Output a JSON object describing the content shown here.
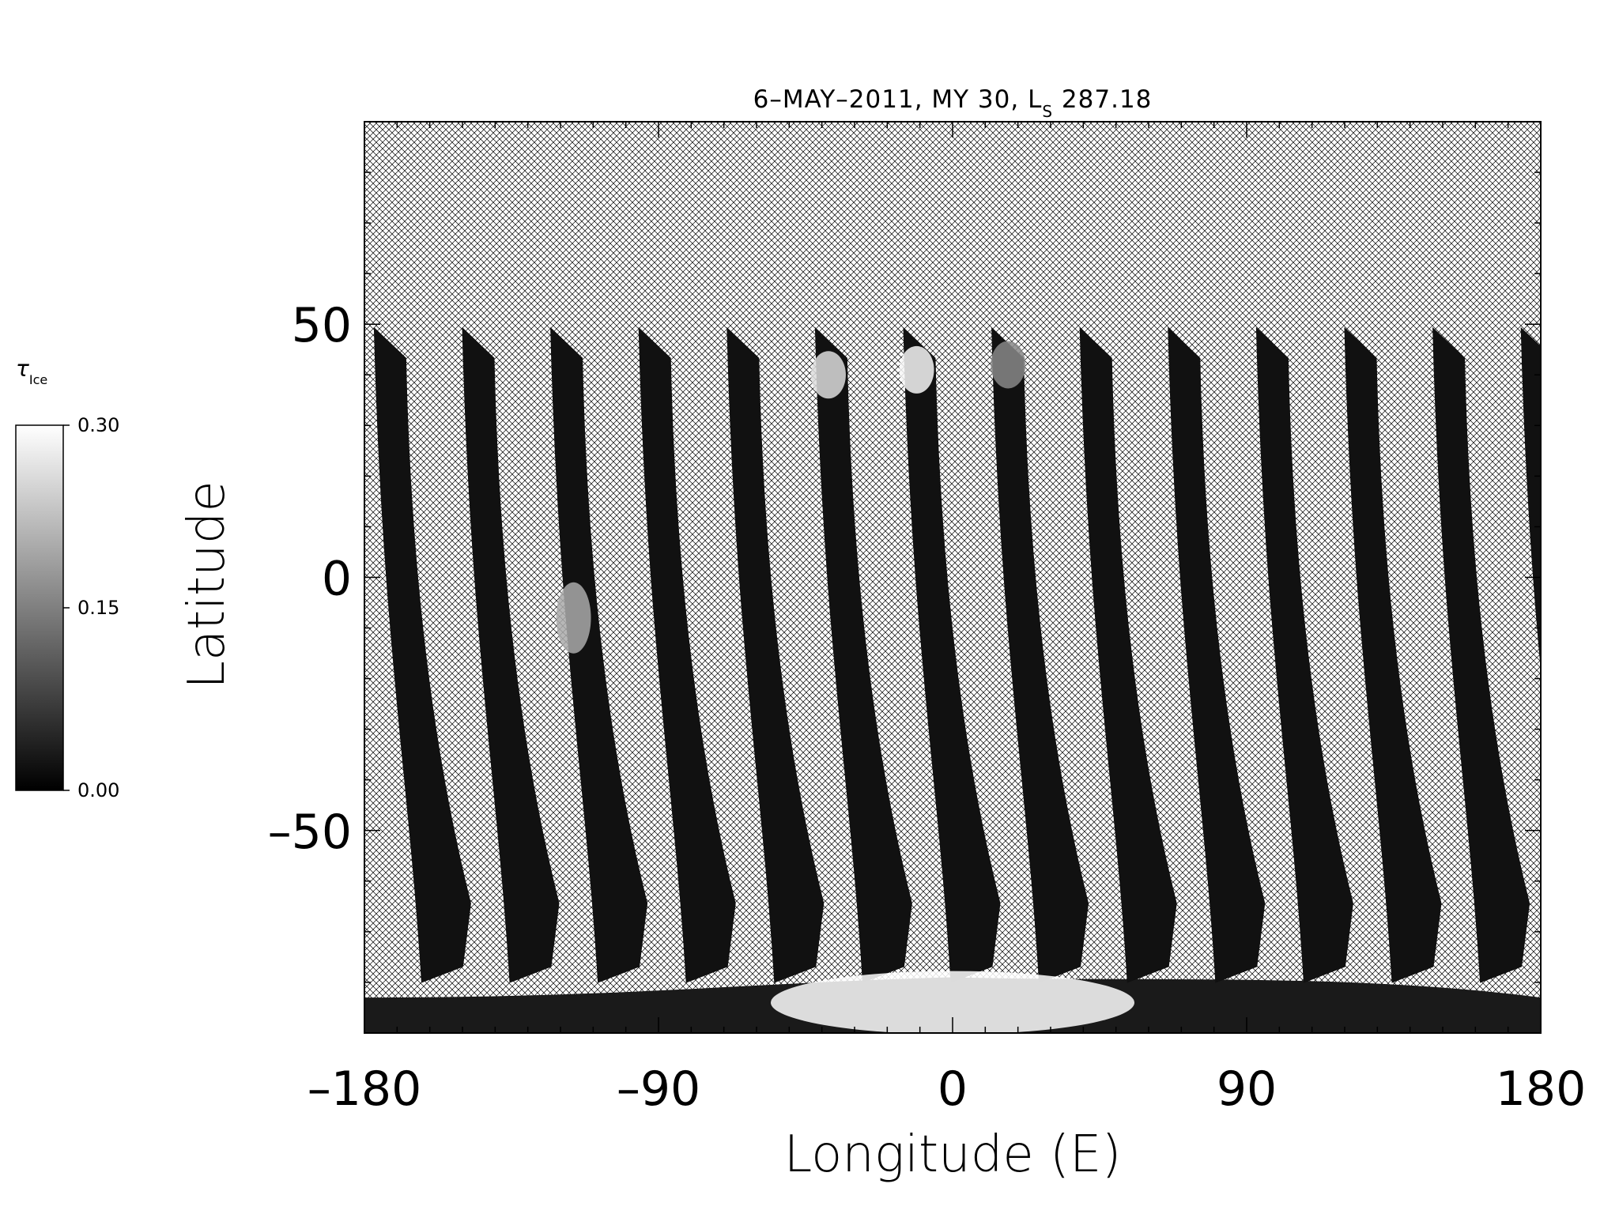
{
  "chart_data": {
    "type": "heatmap",
    "title": {
      "main": "6–MAY–2011, MY 30,  L",
      "subscript": "S",
      "suffix": " 287.18"
    },
    "xlabel": "Longitude (E)",
    "ylabel": "Latitude",
    "xlim": [
      -180,
      180
    ],
    "ylim": [
      -90,
      90
    ],
    "x_ticks": [
      -180,
      -90,
      0,
      90,
      180
    ],
    "x_tick_labels": [
      "–180",
      "–90",
      "0",
      "90",
      "180"
    ],
    "y_ticks": [
      -50,
      0,
      50
    ],
    "y_tick_labels": [
      "–50",
      "0",
      "50"
    ],
    "no_data_fill": "crosshatch",
    "colorbar": {
      "symbol": "τ",
      "subscript": "Ice",
      "min": 0.0,
      "max": 0.3,
      "tick_values": [
        0.0,
        0.15,
        0.3
      ],
      "tick_labels": [
        "0.00",
        "0.15",
        "0.30"
      ],
      "colormap": "grayscale",
      "low_color": "#000000",
      "high_color": "#ffffff"
    },
    "swaths": {
      "count": 14,
      "approx_start_longitudes_at_50N": [
        -177,
        -150,
        -123,
        -96,
        -69,
        -42,
        -15,
        12,
        39,
        66,
        93,
        120,
        147,
        174
      ],
      "north_edge_lat": 48,
      "south_edge_lat": -80,
      "typical_tau_ice": 0.02
    },
    "features": [
      {
        "lon": -38,
        "lat": 40,
        "tau_ice": 0.26
      },
      {
        "lon": -11,
        "lat": 41,
        "tau_ice": 0.29
      },
      {
        "lon": 17,
        "lat": 42,
        "tau_ice": 0.16
      },
      {
        "lon": -116,
        "lat": -8,
        "tau_ice": 0.2
      },
      {
        "lon": 0,
        "lat": -84,
        "tau_ice": 0.3
      }
    ]
  }
}
